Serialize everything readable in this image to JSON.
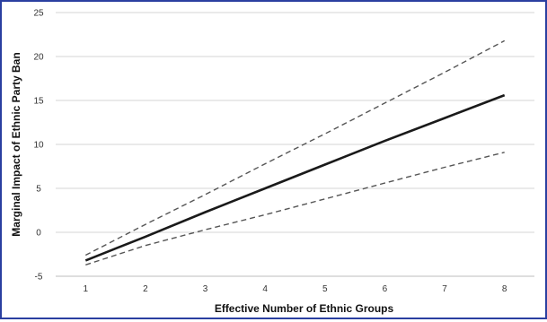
{
  "chart_data": {
    "type": "line",
    "title": "",
    "xlabel": "Effective Number of Ethnic Groups",
    "ylabel": "Marginal Impact of Ethnic Party Ban",
    "x": [
      1,
      2,
      3,
      4,
      5,
      6,
      7,
      8
    ],
    "xlim": [
      0.5,
      8.5
    ],
    "ylim": [
      -5,
      25
    ],
    "x_ticks": [
      "1",
      "2",
      "3",
      "4",
      "5",
      "6",
      "7",
      "8"
    ],
    "y_ticks": [
      "-5",
      "0",
      "5",
      "10",
      "15",
      "20",
      "25"
    ],
    "grid": "horizontal",
    "legend": "none",
    "series": [
      {
        "style": "solid",
        "color": "#1a1a1a",
        "values": [
          -3.2,
          -0.5,
          2.3,
          5.0,
          7.7,
          10.4,
          13.0,
          15.6
        ]
      },
      {
        "style": "dashed",
        "color": "#555555",
        "values": [
          -2.6,
          0.9,
          4.3,
          7.8,
          11.2,
          14.7,
          18.2,
          21.8
        ]
      },
      {
        "style": "dashed",
        "color": "#555555",
        "values": [
          -3.7,
          -1.5,
          0.3,
          2.0,
          3.8,
          5.6,
          7.4,
          9.1
        ]
      }
    ]
  }
}
